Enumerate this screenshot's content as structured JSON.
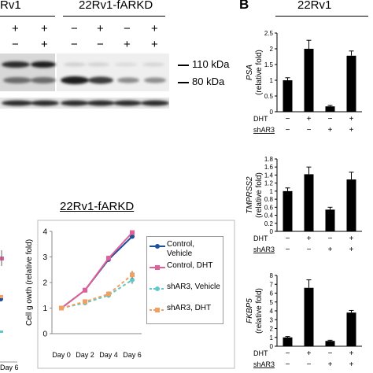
{
  "blot": {
    "left_title": "Rv1",
    "right_title": "22Rv1-fARKD",
    "row1_signs": [
      "+",
      "+",
      "−",
      "+",
      "−",
      "+"
    ],
    "row2_signs": [
      "−",
      "+",
      "−",
      "−",
      "+",
      "+"
    ],
    "marker_110": "110 kDa",
    "marker_80": "80 kDa"
  },
  "panel_b": {
    "letter": "B",
    "title": "22Rv1"
  },
  "growth": {
    "title": "22Rv1-fARKD",
    "y_ticks": [
      "0",
      "1",
      "2",
      "3",
      "4"
    ],
    "x_ticks": [
      "Day 0",
      "Day 2",
      "Day 4",
      "Day 6"
    ],
    "ylabel": "Cell g owth (relative fold)",
    "left_x_tick": "Day 6"
  },
  "chart_data": [
    {
      "type": "line",
      "title": "22Rv1-fARKD",
      "xlabel": "",
      "ylabel": "Cell g owth (relative fold)",
      "categories": [
        "Day 0",
        "Day 2",
        "Day 4",
        "Day 6"
      ],
      "ylim": [
        0,
        4
      ],
      "series": [
        {
          "name": "Control, Vehicle",
          "color": "#1f4e9c",
          "dashed": false,
          "values": [
            1.0,
            1.7,
            2.9,
            3.8
          ],
          "errors": [
            0.03,
            0.05,
            0.1,
            0.08
          ]
        },
        {
          "name": "Control, DHT",
          "color": "#e0609a",
          "dashed": false,
          "values": [
            1.0,
            1.7,
            2.95,
            3.95
          ],
          "errors": [
            0.03,
            0.05,
            0.1,
            0.08
          ]
        },
        {
          "name": "shAR3, Vehicle",
          "color": "#5fc8c8",
          "dashed": true,
          "values": [
            1.0,
            1.2,
            1.5,
            2.1
          ],
          "errors": [
            0.03,
            0.05,
            0.1,
            0.15
          ]
        },
        {
          "name": "shAR3, DHT",
          "color": "#f0a060",
          "dashed": true,
          "values": [
            1.0,
            1.25,
            1.55,
            2.3
          ],
          "errors": [
            0.03,
            0.05,
            0.1,
            0.15
          ]
        }
      ]
    },
    {
      "type": "bar",
      "ylabel_gene": "PSA",
      "ylabel_rest": "(relative fold)",
      "ylim": [
        0,
        2.5
      ],
      "ticks": [
        "0",
        "0.5",
        "1",
        "1.5",
        "2",
        "2.5"
      ],
      "values": [
        1.0,
        2.0,
        0.17,
        1.78
      ],
      "errors": [
        0.08,
        0.27,
        0.03,
        0.15
      ],
      "rows": [
        {
          "label": "DHT",
          "signs": [
            "−",
            "+",
            "−",
            "+"
          ]
        },
        {
          "label": "shAR3",
          "signs": [
            "−",
            "−",
            "+",
            "+"
          ]
        }
      ]
    },
    {
      "type": "bar",
      "ylabel_gene": "TMPRSS2",
      "ylabel_rest": "(relative fold)",
      "ylim": [
        0,
        1.8
      ],
      "ticks": [
        "0",
        "0.2",
        "0.4",
        "0.6",
        "0.8",
        "1",
        "1.2",
        "1.4",
        "1.6",
        "1.8"
      ],
      "values": [
        1.0,
        1.42,
        0.54,
        1.29
      ],
      "errors": [
        0.08,
        0.18,
        0.06,
        0.18
      ],
      "rows": [
        {
          "label": "DHT",
          "signs": [
            "−",
            "+",
            "−",
            "+"
          ]
        },
        {
          "label": "shAR3",
          "signs": [
            "−",
            "−",
            "+",
            "+"
          ]
        }
      ]
    },
    {
      "type": "bar",
      "ylabel_gene": "FKBP5",
      "ylabel_rest": "(relative fold)",
      "ylim": [
        0,
        8
      ],
      "ticks": [
        "0",
        "1",
        "2",
        "3",
        "4",
        "5",
        "6",
        "7",
        "8"
      ],
      "values": [
        1.0,
        6.6,
        0.6,
        3.8
      ],
      "errors": [
        0.1,
        0.9,
        0.08,
        0.25
      ],
      "rows": [
        {
          "label": "DHT",
          "signs": [
            "−",
            "+",
            "−",
            "+"
          ]
        },
        {
          "label": "shAR3",
          "signs": [
            "−",
            "−",
            "+",
            "+"
          ]
        }
      ]
    }
  ]
}
